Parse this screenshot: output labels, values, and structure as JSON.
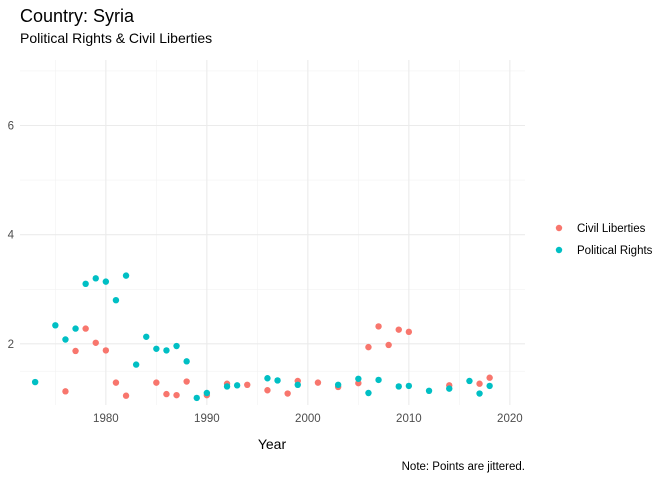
{
  "chart_data": {
    "type": "scatter",
    "title": "Country: Syria",
    "subtitle": "Political Rights & Civil Liberties",
    "xlabel": "Year",
    "ylabel": "",
    "caption": "Note: Points are jittered.",
    "xlim": [
      1971.5,
      2021.5
    ],
    "ylim": [
      0.88,
      7.2
    ],
    "x_ticks": [
      1980,
      1990,
      2000,
      2010,
      2020
    ],
    "y_ticks": [
      2,
      4,
      6
    ],
    "grid": true,
    "legend_position": "right",
    "series": [
      {
        "name": "Civil Liberties",
        "color": "#F8766D",
        "points": [
          [
            1976,
            1.13
          ],
          [
            1977,
            1.87
          ],
          [
            1978,
            2.28
          ],
          [
            1979,
            2.02
          ],
          [
            1980,
            1.88
          ],
          [
            1981,
            1.29
          ],
          [
            1982,
            1.05
          ],
          [
            1985,
            1.29
          ],
          [
            1986,
            1.08
          ],
          [
            1987,
            1.06
          ],
          [
            1988,
            1.31
          ],
          [
            1990,
            1.06
          ],
          [
            1992,
            1.27
          ],
          [
            1994,
            1.25
          ],
          [
            1996,
            1.15
          ],
          [
            1998,
            1.09
          ],
          [
            1999,
            1.32
          ],
          [
            2001,
            1.29
          ],
          [
            2003,
            1.21
          ],
          [
            2005,
            1.28
          ],
          [
            2006,
            1.94
          ],
          [
            2007,
            2.32
          ],
          [
            2008,
            1.98
          ],
          [
            2009,
            2.26
          ],
          [
            2010,
            2.22
          ],
          [
            2014,
            1.24
          ],
          [
            2017,
            1.27
          ],
          [
            2018,
            1.38
          ]
        ]
      },
      {
        "name": "Political Rights",
        "color": "#00BFC4",
        "points": [
          [
            1973,
            1.3
          ],
          [
            1975,
            2.34
          ],
          [
            1976,
            2.08
          ],
          [
            1977,
            2.28
          ],
          [
            1978,
            3.1
          ],
          [
            1979,
            3.2
          ],
          [
            1980,
            3.14
          ],
          [
            1981,
            2.8
          ],
          [
            1982,
            3.25
          ],
          [
            1983,
            1.62
          ],
          [
            1984,
            2.13
          ],
          [
            1985,
            1.91
          ],
          [
            1986,
            1.88
          ],
          [
            1987,
            1.96
          ],
          [
            1988,
            1.68
          ],
          [
            1989,
            1.01
          ],
          [
            1990,
            1.1
          ],
          [
            1992,
            1.22
          ],
          [
            1993,
            1.24
          ],
          [
            1996,
            1.37
          ],
          [
            1997,
            1.33
          ],
          [
            1999,
            1.25
          ],
          [
            2003,
            1.25
          ],
          [
            2005,
            1.36
          ],
          [
            2006,
            1.1
          ],
          [
            2007,
            1.34
          ],
          [
            2009,
            1.22
          ],
          [
            2010,
            1.23
          ],
          [
            2012,
            1.14
          ],
          [
            2014,
            1.18
          ],
          [
            2016,
            1.32
          ],
          [
            2017,
            1.09
          ],
          [
            2018,
            1.23
          ]
        ]
      }
    ]
  }
}
